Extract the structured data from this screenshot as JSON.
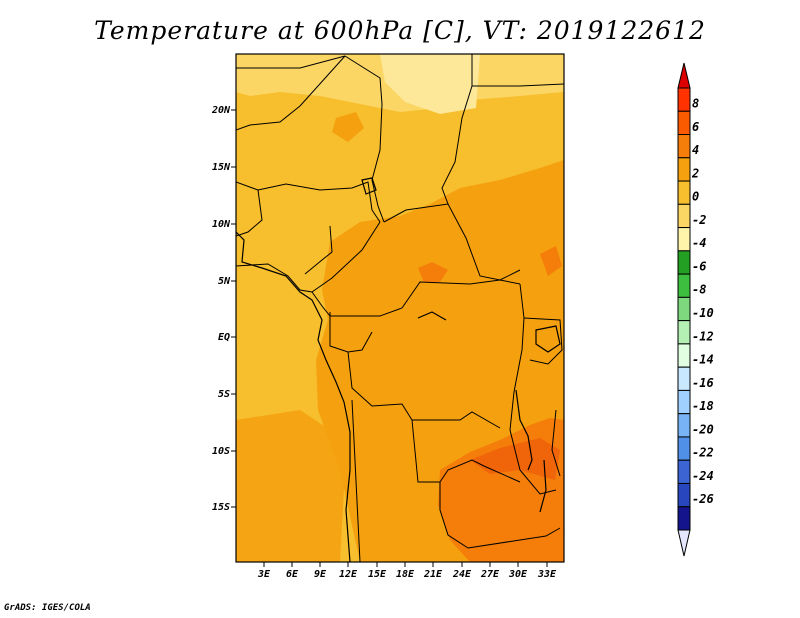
{
  "title": "Temperature at 600hPa [C], VT: 2019122612",
  "credit": "GrADS: IGES/COLA",
  "map": {
    "lat_labels": [
      "20N",
      "15N",
      "10N",
      "5N",
      "EQ",
      "5S",
      "10S",
      "15S"
    ],
    "lon_labels": [
      "3E",
      "6E",
      "9E",
      "12E",
      "15E",
      "18E",
      "21E",
      "24E",
      "27E",
      "30E",
      "33E"
    ]
  },
  "colorbar": {
    "levels": [
      "8",
      "6",
      "4",
      "2",
      "0",
      "-2",
      "-4",
      "-6",
      "-8",
      "-10",
      "-12",
      "-14",
      "-16",
      "-18",
      "-20",
      "-22",
      "-24",
      "-26"
    ],
    "colors": [
      "#ff3200",
      "#fa5a00",
      "#f57d0a",
      "#f5a00f",
      "#f7be2d",
      "#fbd664",
      "#fff5aa",
      "#23a023",
      "#3ebe3e",
      "#7ed87e",
      "#b4f0b4",
      "#e1ffe1",
      "#c8e8ff",
      "#a0d0ff",
      "#78b4f5",
      "#5090e6",
      "#3c64d2",
      "#2846be",
      "#14148c"
    ],
    "top_color": "#dc0000",
    "bottom_color": "#e6e6ff"
  }
}
